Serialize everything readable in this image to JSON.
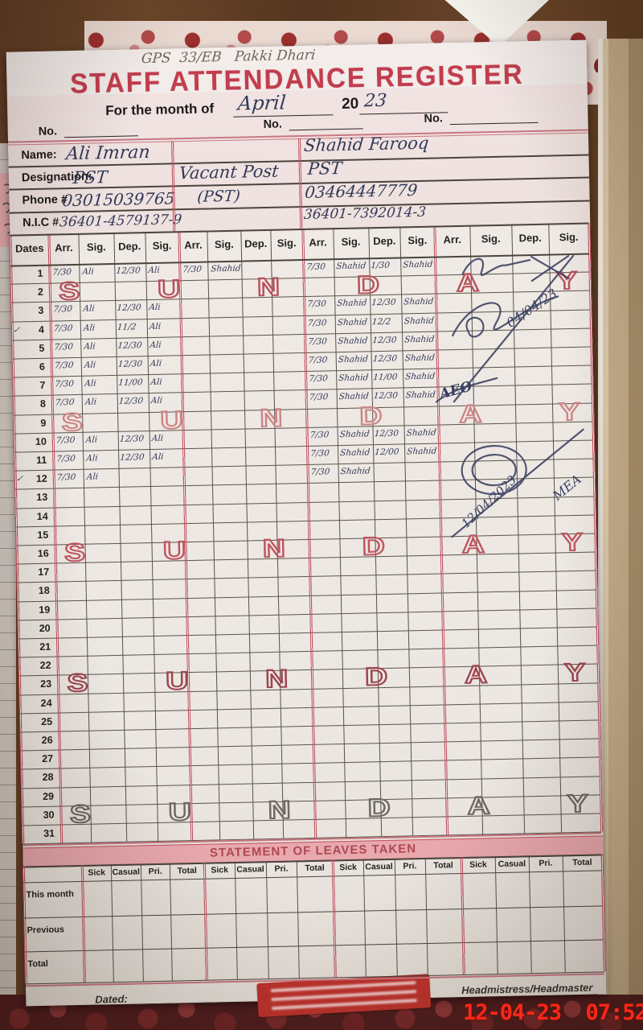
{
  "photo": {
    "camera_timestamp": "12-04-23  07:52"
  },
  "page": {
    "school_line": "GPS  33/EB   Pakki Dhari",
    "title": "STAFF ATTENDANCE REGISTER",
    "month_label": "For the month of",
    "month_value": "April",
    "year_printed": "20",
    "year_written": "23",
    "no_label": "No.",
    "info": {
      "name_label": "Name:",
      "designation_label": "Designation:",
      "phone_label": "Phone #",
      "nic_label": "N.I.C #",
      "teachers": [
        {
          "name": "Ali Imran",
          "designation": "PST",
          "phone": "03015039765",
          "nic": "36401-4579137-9"
        },
        {
          "name": "",
          "designation": "Vacant Post",
          "phone": "(PST)",
          "nic": ""
        },
        {
          "name": "Shahid Farooq",
          "designation": "PST",
          "phone": "03464447779",
          "nic": "36401-7392014-3"
        }
      ]
    },
    "grid": {
      "dates_header": "Dates",
      "group_headers": [
        "Arr.",
        "Sig.",
        "Dep.",
        "Sig."
      ],
      "sunday_text": "SUNDAY",
      "check_glyph": "✓",
      "checked_days": [
        4,
        12
      ],
      "sundays": [
        {
          "day": 2,
          "color": "#b9505c"
        },
        {
          "day": 9,
          "color": "#cc8686"
        },
        {
          "day": 16,
          "color": "#bf5560"
        },
        {
          "day": 23,
          "color": "#9e4550"
        },
        {
          "day": 30,
          "color": "#6e6962"
        }
      ],
      "rows": [
        {
          "d": 1,
          "e": [
            [
              "7/30",
              "Ali",
              "12/30",
              "Ali"
            ],
            [
              "7/30",
              "Shahid",
              null,
              null
            ],
            [
              "7/30",
              "Shahid",
              "1/30",
              "Shahid"
            ],
            null
          ]
        },
        {
          "d": 2,
          "sunday": true
        },
        {
          "d": 3,
          "e": [
            [
              "7/30",
              "Ali",
              "12/30",
              "Ali"
            ],
            null,
            [
              "7/30",
              "Shahid",
              "12/30",
              "Shahid"
            ],
            null
          ]
        },
        {
          "d": 4,
          "e": [
            [
              "7/30",
              "Ali",
              "11/2",
              "Ali"
            ],
            null,
            [
              "7/30",
              "Shahid",
              "12/2",
              "Shahid"
            ],
            null
          ]
        },
        {
          "d": 5,
          "e": [
            [
              "7/30",
              "Ali",
              "12/30",
              "Ali"
            ],
            null,
            [
              "7/30",
              "Shahid",
              "12/30",
              "Shahid"
            ],
            null
          ]
        },
        {
          "d": 6,
          "e": [
            [
              "7/30",
              "Ali",
              "12/30",
              "Ali"
            ],
            null,
            [
              "7/30",
              "Shahid",
              "12/30",
              "Shahid"
            ],
            null
          ]
        },
        {
          "d": 7,
          "e": [
            [
              "7/30",
              "Ali",
              "11/00",
              "Ali"
            ],
            null,
            [
              "7/30",
              "Shahid",
              "11/00",
              "Shahid"
            ],
            null
          ]
        },
        {
          "d": 8,
          "e": [
            [
              "7/30",
              "Ali",
              "12/30",
              "Ali"
            ],
            null,
            [
              "7/30",
              "Shahid",
              "12/30",
              "Shahid"
            ],
            null
          ]
        },
        {
          "d": 9,
          "sunday": true
        },
        {
          "d": 10,
          "e": [
            [
              "7/30",
              "Ali",
              "12/30",
              "Ali"
            ],
            null,
            [
              "7/30",
              "Shahid",
              "12/30",
              "Shahid"
            ],
            null
          ]
        },
        {
          "d": 11,
          "e": [
            [
              "7/30",
              "Ali",
              "12/30",
              "Ali"
            ],
            null,
            [
              "7/30",
              "Shahid",
              "12/00",
              "Shahid"
            ],
            null
          ]
        },
        {
          "d": 12,
          "e": [
            [
              "7/30",
              "Ali",
              null,
              null
            ],
            null,
            [
              "7/30",
              "Shahid",
              null,
              null
            ],
            null
          ]
        },
        {
          "d": 13
        },
        {
          "d": 14
        },
        {
          "d": 15
        },
        {
          "d": 16,
          "sunday": true
        },
        {
          "d": 17
        },
        {
          "d": 18
        },
        {
          "d": 19
        },
        {
          "d": 20
        },
        {
          "d": 21
        },
        {
          "d": 22
        },
        {
          "d": 23,
          "sunday": true
        },
        {
          "d": 24
        },
        {
          "d": 25
        },
        {
          "d": 26
        },
        {
          "d": 27
        },
        {
          "d": 28
        },
        {
          "d": 29
        },
        {
          "d": 30,
          "sunday": true
        },
        {
          "d": 31
        }
      ]
    },
    "annotations": {
      "visit1_date": "04/04/23",
      "visit1_initials": "AEO",
      "visit2_date": "12/04/2023",
      "visit2_initials": "MEA"
    },
    "leaves": {
      "banner": "STATEMENT OF LEAVES TAKEN",
      "col_headers": [
        "Sick",
        "Casual",
        "Pri.",
        "Total"
      ],
      "row_labels": [
        "This month",
        "Previous",
        "Total"
      ]
    },
    "footer": {
      "dated_label": "Dated:",
      "signatory_label": "Headmistress/Headmaster"
    }
  },
  "colors": {
    "print_red": "#c23d4e",
    "grid_red": "#c05060",
    "ink": "#323a58",
    "banner_bg": "#e8a8ae",
    "banner_text": "#ae4853",
    "stamp_bg": "#bf332d",
    "timestamp_red": "#fb2819"
  }
}
